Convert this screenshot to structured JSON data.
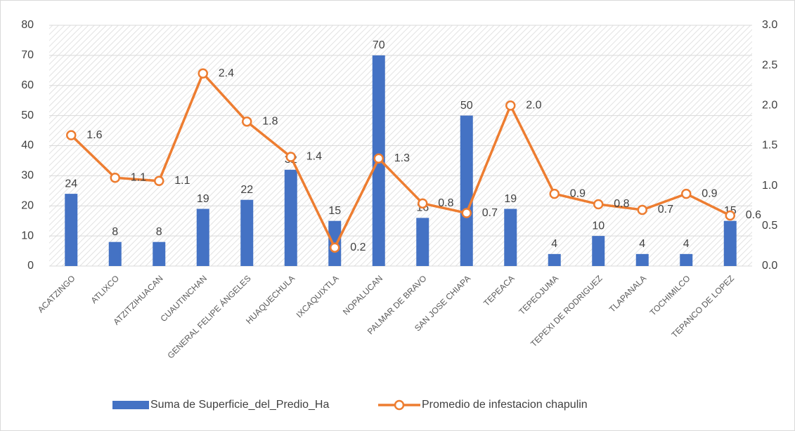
{
  "chart_data": {
    "type": "bar-line",
    "categories": [
      "ACATZINGO",
      "ATLIXCO",
      "ATZITZIHUACAN",
      "CUAUTINCHAN",
      "GENERAL FELIPE ÁNGELES",
      "HUAQUECHULA",
      "IXCAQUIXTLA",
      "NOPALUCAN",
      "PALMAR DE BRAVO",
      "SAN JOSE CHIAPA",
      "TEPEACA",
      "TEPEOJUMA",
      "TEPEXI DE RODRIGUEZ",
      "TLAPANALA",
      "TOCHIMILCO",
      "TEPANCO DE LOPEZ"
    ],
    "series": [
      {
        "name": "Suma de Superficie_del_Predio_Ha",
        "type": "bar",
        "color": "#4472c4",
        "axis": "y",
        "values": [
          24,
          8,
          8,
          19,
          22,
          32,
          15,
          70,
          16,
          50,
          19,
          4,
          10,
          4,
          4,
          15
        ]
      },
      {
        "name": "Promedio de infestacion chapulin",
        "type": "line",
        "color": "#ed7d31",
        "axis": "y2",
        "values": [
          1.63,
          1.1,
          1.06,
          2.4,
          1.8,
          1.36,
          0.23,
          1.34,
          0.78,
          0.66,
          2.0,
          0.9,
          0.77,
          0.7,
          0.9,
          0.63
        ],
        "value_labels": [
          "1.6",
          "1.1",
          "1.1",
          "2.4",
          "1.8",
          "1.4",
          "0.2",
          "1.3",
          "0.8",
          "0.7",
          "2.0",
          "0.9",
          "0.8",
          "0.7",
          "0.9",
          "0.6"
        ]
      }
    ],
    "ylim": [
      0,
      80
    ],
    "yticks": [
      0,
      10,
      20,
      30,
      40,
      50,
      60,
      70,
      80
    ],
    "y2lim": [
      0,
      3
    ],
    "y2ticks": [
      {
        "value": 0,
        "label": "0.0"
      },
      {
        "value": 0.5,
        "label": "0.5"
      },
      {
        "value": 1,
        "label": "1.0"
      },
      {
        "value": 1.5,
        "label": "1.5"
      },
      {
        "value": 2,
        "label": "2.0"
      },
      {
        "value": 2.5,
        "label": "2.5"
      },
      {
        "value": 3,
        "label": "3.0"
      }
    ],
    "grid": true,
    "legend": "bottom"
  }
}
